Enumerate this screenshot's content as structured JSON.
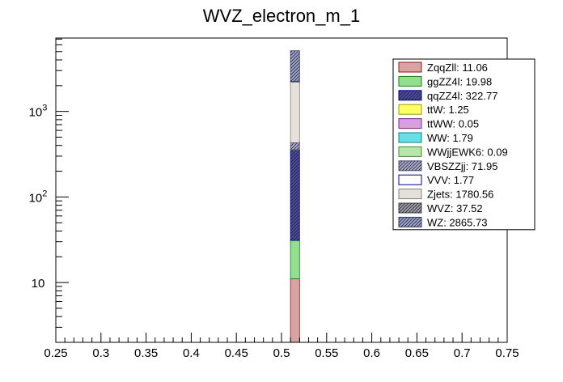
{
  "chart_data": {
    "type": "bar",
    "title": "WVZ_electron_m_1",
    "xlabel": "",
    "ylabel": "",
    "stacked": true,
    "log_y": true,
    "xlim": [
      0.25,
      0.75
    ],
    "ylim": [
      2,
      7200
    ],
    "bin": [
      0.51,
      0.52
    ],
    "x_ticks": [
      0.25,
      0.3,
      0.35,
      0.4,
      0.45,
      0.5,
      0.55,
      0.6,
      0.65,
      0.7,
      0.75
    ],
    "x_tick_labels": [
      "0.25",
      "0.3",
      "0.35",
      "0.4",
      "0.45",
      "0.5",
      "0.55",
      "0.6",
      "0.65",
      "0.7",
      "0.75"
    ],
    "y_major_ticks": [
      10,
      100,
      1000
    ],
    "y_major_labels": [
      {
        "base": "10",
        "exp": ""
      },
      {
        "base": "10",
        "exp": "2"
      },
      {
        "base": "10",
        "exp": "3"
      }
    ],
    "legend_placement": "top-right",
    "grid": false,
    "series": [
      {
        "name": "ZqqZll",
        "value": 11.06,
        "label": "ZqqZll: 11.06",
        "fill": "#d9a3a3",
        "stroke": "#8c1a1a",
        "hatch": false
      },
      {
        "name": "ggZZ4l",
        "value": 19.98,
        "label": "ggZZ4l: 19.98",
        "fill": "#90e08e",
        "stroke": "#1f7a1f",
        "hatch": false
      },
      {
        "name": "qqZZ4l",
        "value": 322.77,
        "label": "qqZZ4l: 322.77",
        "fill": "#4a4a9a",
        "stroke": "#00008b",
        "hatch": true
      },
      {
        "name": "ttW",
        "value": 1.25,
        "label": "ttW: 1.25",
        "fill": "#ffff66",
        "stroke": "#999900",
        "hatch": false
      },
      {
        "name": "ttWW",
        "value": 0.05,
        "label": "ttWW: 0.05",
        "fill": "#d99ee0",
        "stroke": "#7a2a82",
        "hatch": false
      },
      {
        "name": "WW",
        "value": 1.79,
        "label": "WW: 1.79",
        "fill": "#66e0e6",
        "stroke": "#0f7f85",
        "hatch": false
      },
      {
        "name": "WWjjEWK6",
        "value": 0.09,
        "label": "WWjjEWK6: 0.09",
        "fill": "#b6e6a8",
        "stroke": "#4a8a3a",
        "hatch": false
      },
      {
        "name": "VBSZZjj",
        "value": 71.95,
        "label": "VBSZZjj: 71.95",
        "fill": "#a8a8c0",
        "stroke": "#555577",
        "hatch": true
      },
      {
        "name": "VVV",
        "value": 1.77,
        "label": "VVV: 1.77",
        "fill": "#ffffff",
        "stroke": "#00008b",
        "hatch": false
      },
      {
        "name": "Zjets",
        "value": 1780.56,
        "label": "Zjets: 1780.56",
        "fill": "#e4e0dc",
        "stroke": "#8a8070",
        "hatch": false
      },
      {
        "name": "WVZ",
        "value": 37.52,
        "label": "WVZ: 37.52",
        "fill": "#9a9a9a",
        "stroke": "#444444",
        "hatch": true
      },
      {
        "name": "WZ",
        "value": 2865.73,
        "label": "WZ: 2865.73",
        "fill": "#9aa0c0",
        "stroke": "#3a3f6a",
        "hatch": true
      }
    ]
  }
}
